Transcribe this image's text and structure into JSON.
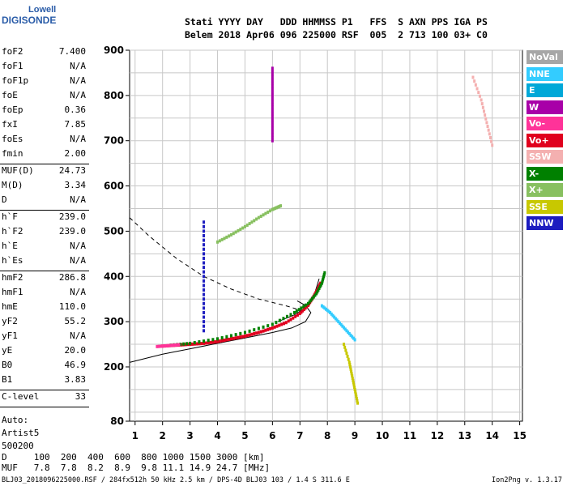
{
  "logo": {
    "line1": "Lowell",
    "line2": "DIGISONDE"
  },
  "header": {
    "row1": "Stati YYYY DAY   DDD HHMMSS P1   FFS  S AXN PPS IGA PS",
    "row2": "Belem 2018 Apr06 096 225000 RSF  005  2 713 100 03+ C0"
  },
  "params_group1": [
    {
      "label": "foF2",
      "value": "7.400"
    },
    {
      "label": "foF1",
      "value": "N/A"
    },
    {
      "label": "foF1p",
      "value": "N/A"
    },
    {
      "label": "foE",
      "value": "N/A"
    },
    {
      "label": "foEp",
      "value": "0.36"
    },
    {
      "label": "fxI",
      "value": "7.85"
    },
    {
      "label": "foEs",
      "value": "N/A"
    },
    {
      "label": "fmin",
      "value": "2.00"
    }
  ],
  "params_group2": [
    {
      "label": "MUF(D)",
      "value": "24.73"
    },
    {
      "label": "M(D)",
      "value": "3.34"
    },
    {
      "label": "D",
      "value": "N/A"
    }
  ],
  "params_group3": [
    {
      "label": "h`F",
      "value": "239.0"
    },
    {
      "label": "h`F2",
      "value": "239.0"
    },
    {
      "label": "h`E",
      "value": "N/A"
    },
    {
      "label": "h`Es",
      "value": "N/A"
    }
  ],
  "params_group4": [
    {
      "label": "hmF2",
      "value": "286.8"
    },
    {
      "label": "hmF1",
      "value": "N/A"
    },
    {
      "label": "hmE",
      "value": "110.0"
    },
    {
      "label": "yF2",
      "value": "55.2"
    },
    {
      "label": "yF1",
      "value": "N/A"
    },
    {
      "label": "yE",
      "value": "20.0"
    },
    {
      "label": "B0",
      "value": "46.9"
    },
    {
      "label": "B1",
      "value": "3.83"
    }
  ],
  "params_group5": [
    {
      "label": "C-level",
      "value": "33"
    }
  ],
  "auto": {
    "line1": "Auto:",
    "line2": "Artist5",
    "line3": "500200"
  },
  "legend": [
    {
      "label": "NoVal",
      "color": "#a6a6a6"
    },
    {
      "label": "NNE",
      "color": "#33ccff"
    },
    {
      "label": "E",
      "color": "#00a8d8"
    },
    {
      "label": "W",
      "color": "#a800a8"
    },
    {
      "label": "Vo-",
      "color": "#ff3399"
    },
    {
      "label": "Vo+",
      "color": "#e0001e"
    },
    {
      "label": "SSW",
      "color": "#f4b0b0"
    },
    {
      "label": "X-",
      "color": "#008000"
    },
    {
      "label": "X+",
      "color": "#88c060"
    },
    {
      "label": "SSE",
      "color": "#c8c800"
    },
    {
      "label": "NNW",
      "color": "#1c1cc0"
    }
  ],
  "dtable": {
    "row1": "D     100  200  400  600  800 1000 1500 3000 [km]",
    "row2": "MUF   7.8  7.8  8.2  8.9  9.8 11.1 14.9 24.7 [MHz]"
  },
  "footer": {
    "left": "BLJ03_2018096225000.RSF / 284fx512h 50 kHz 2.5 km / DPS-4D BLJ03 103 / 1.4 S 311.6 E",
    "right": "Ion2Png v. 1.3.17"
  },
  "chart_data": {
    "type": "scatter",
    "xlim": [
      0.8,
      15.1
    ],
    "ylim": [
      80,
      900
    ],
    "x_ticks": [
      1,
      2,
      3,
      4,
      5,
      6,
      7,
      8,
      9,
      10,
      11,
      12,
      13,
      14,
      15
    ],
    "y_ticks": [
      80,
      200,
      300,
      400,
      500,
      600,
      700,
      800,
      900
    ],
    "grid": true,
    "traces": [
      {
        "name": "Vo+",
        "color": "#e0001e",
        "points": [
          [
            2.0,
            246
          ],
          [
            2.5,
            248
          ],
          [
            3.0,
            250
          ],
          [
            3.5,
            252
          ],
          [
            4.0,
            256
          ],
          [
            4.5,
            262
          ],
          [
            5.0,
            268
          ],
          [
            5.5,
            276
          ],
          [
            6.0,
            286
          ],
          [
            6.5,
            298
          ],
          [
            7.0,
            318
          ],
          [
            7.3,
            336
          ],
          [
            7.5,
            356
          ],
          [
            7.65,
            372
          ],
          [
            7.75,
            385
          ]
        ]
      },
      {
        "name": "X-",
        "color": "#008000",
        "points": [
          [
            2.3,
            248
          ],
          [
            3.0,
            252
          ],
          [
            4.0,
            262
          ],
          [
            5.0,
            276
          ],
          [
            6.0,
            294
          ],
          [
            6.8,
            320
          ],
          [
            7.3,
            340
          ],
          [
            7.6,
            362
          ],
          [
            7.8,
            385
          ],
          [
            7.9,
            408
          ]
        ]
      },
      {
        "name": "X+",
        "color": "#88c060",
        "points": [
          [
            4.0,
            476
          ],
          [
            4.5,
            492
          ],
          [
            5.0,
            510
          ],
          [
            5.5,
            530
          ],
          [
            6.0,
            548
          ],
          [
            6.3,
            556
          ]
        ]
      },
      {
        "name": "Vo-",
        "color": "#ff3399",
        "points": [
          [
            1.8,
            245
          ],
          [
            2.2,
            247
          ],
          [
            2.6,
            249
          ]
        ]
      },
      {
        "name": "NNE",
        "color": "#33ccff",
        "points": [
          [
            7.8,
            335
          ],
          [
            8.1,
            320
          ],
          [
            8.4,
            300
          ],
          [
            8.7,
            280
          ],
          [
            9.0,
            260
          ]
        ]
      },
      {
        "name": "SSE",
        "color": "#c8c800",
        "points": [
          [
            8.6,
            250
          ],
          [
            8.8,
            210
          ],
          [
            8.9,
            180
          ],
          [
            9.0,
            150
          ],
          [
            9.1,
            120
          ]
        ]
      },
      {
        "name": "SSW",
        "color": "#f4b0b0",
        "points": [
          [
            13.3,
            840
          ],
          [
            13.6,
            790
          ],
          [
            13.8,
            740
          ],
          [
            14.0,
            690
          ]
        ]
      },
      {
        "name": "W",
        "color": "#a800a8",
        "points": [
          [
            6.0,
            860
          ],
          [
            6.0,
            820
          ],
          [
            6.0,
            780
          ],
          [
            6.0,
            740
          ],
          [
            6.0,
            700
          ]
        ]
      },
      {
        "name": "NNW",
        "color": "#1c1cc0",
        "points": [
          [
            3.5,
            520
          ],
          [
            3.5,
            460
          ],
          [
            3.5,
            400
          ],
          [
            3.5,
            340
          ],
          [
            3.5,
            280
          ]
        ]
      }
    ],
    "profile_solid": [
      [
        0.8,
        210
      ],
      [
        2.0,
        228
      ],
      [
        3.0,
        240
      ],
      [
        4.0,
        252
      ],
      [
        5.0,
        264
      ],
      [
        6.0,
        276
      ],
      [
        6.7,
        286
      ],
      [
        7.2,
        300
      ],
      [
        7.4,
        320
      ],
      [
        7.2,
        336
      ],
      [
        6.9,
        346
      ]
    ],
    "profile_solid2": [
      [
        6.2,
        300
      ],
      [
        6.8,
        315
      ],
      [
        7.2,
        330
      ],
      [
        7.5,
        355
      ],
      [
        7.7,
        395
      ]
    ],
    "profile_dashed": [
      [
        0.8,
        530
      ],
      [
        1.5,
        490
      ],
      [
        2.5,
        440
      ],
      [
        3.5,
        400
      ],
      [
        4.5,
        372
      ],
      [
        5.5,
        350
      ],
      [
        6.5,
        335
      ],
      [
        7.2,
        322
      ]
    ]
  }
}
